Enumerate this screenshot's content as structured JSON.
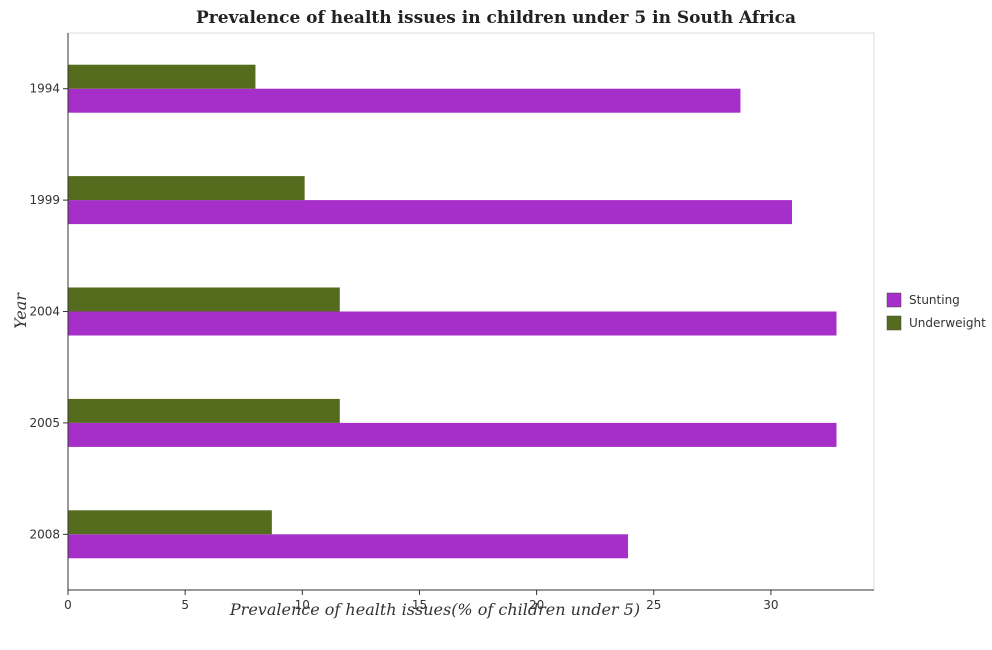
{
  "chart_data": {
    "type": "bar",
    "orientation": "horizontal",
    "title": "Prevalence of health issues in children under 5 in South Africa",
    "xlabel": "Prevalence of health issues(% of children under 5)",
    "ylabel": "Year",
    "categories": [
      "1994",
      "1999",
      "2004",
      "2005",
      "2008"
    ],
    "series": [
      {
        "name": "Stunting",
        "values": [
          28.7,
          30.9,
          32.8,
          32.8,
          23.9
        ],
        "color": "#a62fc9"
      },
      {
        "name": "Underweight",
        "values": [
          8.0,
          10.1,
          11.6,
          11.6,
          8.7
        ],
        "color": "#556b1e"
      }
    ],
    "xticks": [
      "0",
      "5",
      "10",
      "15",
      "20",
      "25",
      "30"
    ],
    "xlim": [
      0,
      34.4
    ],
    "grid": false,
    "legend_position": "right"
  }
}
